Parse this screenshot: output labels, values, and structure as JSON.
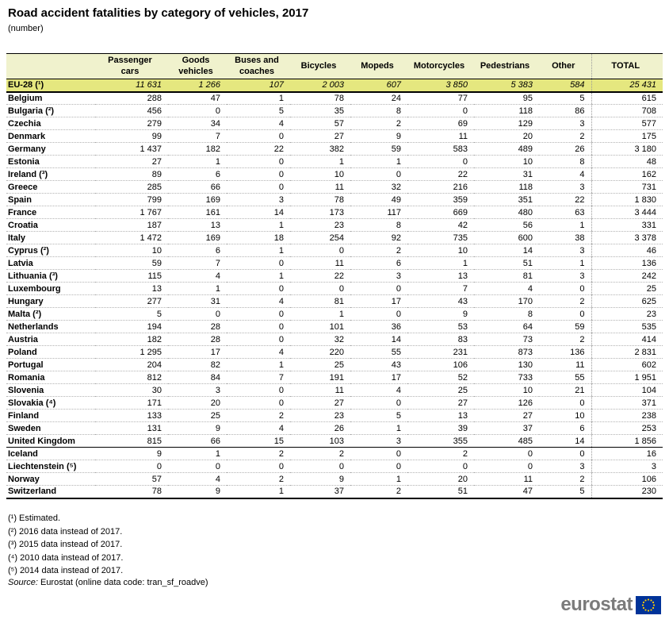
{
  "title": "Road accident fatalities by category of vehicles, 2017",
  "subtitle": "(number)",
  "colors": {
    "header_bg": "#f0f2cd",
    "eu_row_bg": "#e5e77f",
    "logo_text_gray": "#7b7b7b",
    "flag_blue": "#003399",
    "star_yellow": "#ffcc00"
  },
  "table": {
    "columns": [
      "Passenger cars",
      "Goods vehicles",
      "Buses and coaches",
      "Bicycles",
      "Mopeds",
      "Motorcycles",
      "Pedestrians",
      "Other",
      "TOTAL"
    ],
    "eu_row": {
      "name": "EU-28 (¹)",
      "values": [
        "11 631",
        "1 266",
        "107",
        "2 003",
        "607",
        "3 850",
        "5 383",
        "584",
        "25 431"
      ]
    },
    "rows": [
      {
        "name": "Belgium",
        "values": [
          "288",
          "47",
          "1",
          "78",
          "24",
          "77",
          "95",
          "5",
          "615"
        ]
      },
      {
        "name": "Bulgaria (²)",
        "values": [
          "456",
          "0",
          "5",
          "35",
          "8",
          "0",
          "118",
          "86",
          "708"
        ]
      },
      {
        "name": "Czechia",
        "values": [
          "279",
          "34",
          "4",
          "57",
          "2",
          "69",
          "129",
          "3",
          "577"
        ]
      },
      {
        "name": "Denmark",
        "values": [
          "99",
          "7",
          "0",
          "27",
          "9",
          "11",
          "20",
          "2",
          "175"
        ]
      },
      {
        "name": "Germany",
        "values": [
          "1 437",
          "182",
          "22",
          "382",
          "59",
          "583",
          "489",
          "26",
          "3 180"
        ]
      },
      {
        "name": "Estonia",
        "values": [
          "27",
          "1",
          "0",
          "1",
          "1",
          "0",
          "10",
          "8",
          "48"
        ]
      },
      {
        "name": "Ireland (³)",
        "values": [
          "89",
          "6",
          "0",
          "10",
          "0",
          "22",
          "31",
          "4",
          "162"
        ]
      },
      {
        "name": "Greece",
        "values": [
          "285",
          "66",
          "0",
          "11",
          "32",
          "216",
          "118",
          "3",
          "731"
        ]
      },
      {
        "name": "Spain",
        "values": [
          "799",
          "169",
          "3",
          "78",
          "49",
          "359",
          "351",
          "22",
          "1 830"
        ]
      },
      {
        "name": "France",
        "values": [
          "1 767",
          "161",
          "14",
          "173",
          "117",
          "669",
          "480",
          "63",
          "3 444"
        ]
      },
      {
        "name": "Croatia",
        "values": [
          "187",
          "13",
          "1",
          "23",
          "8",
          "42",
          "56",
          "1",
          "331"
        ]
      },
      {
        "name": "Italy",
        "values": [
          "1 472",
          "169",
          "18",
          "254",
          "92",
          "735",
          "600",
          "38",
          "3 378"
        ]
      },
      {
        "name": "Cyprus (²)",
        "values": [
          "10",
          "6",
          "1",
          "0",
          "2",
          "10",
          "14",
          "3",
          "46"
        ]
      },
      {
        "name": "Latvia",
        "values": [
          "59",
          "7",
          "0",
          "11",
          "6",
          "1",
          "51",
          "1",
          "136"
        ]
      },
      {
        "name": "Lithuania (³)",
        "values": [
          "115",
          "4",
          "1",
          "22",
          "3",
          "13",
          "81",
          "3",
          "242"
        ]
      },
      {
        "name": "Luxembourg",
        "values": [
          "13",
          "1",
          "0",
          "0",
          "0",
          "7",
          "4",
          "0",
          "25"
        ]
      },
      {
        "name": "Hungary",
        "values": [
          "277",
          "31",
          "4",
          "81",
          "17",
          "43",
          "170",
          "2",
          "625"
        ]
      },
      {
        "name": "Malta (²)",
        "values": [
          "5",
          "0",
          "0",
          "1",
          "0",
          "9",
          "8",
          "0",
          "23"
        ]
      },
      {
        "name": "Netherlands",
        "values": [
          "194",
          "28",
          "0",
          "101",
          "36",
          "53",
          "64",
          "59",
          "535"
        ]
      },
      {
        "name": "Austria",
        "values": [
          "182",
          "28",
          "0",
          "32",
          "14",
          "83",
          "73",
          "2",
          "414"
        ]
      },
      {
        "name": "Poland",
        "values": [
          "1 295",
          "17",
          "4",
          "220",
          "55",
          "231",
          "873",
          "136",
          "2 831"
        ]
      },
      {
        "name": "Portugal",
        "values": [
          "204",
          "82",
          "1",
          "25",
          "43",
          "106",
          "130",
          "11",
          "602"
        ]
      },
      {
        "name": "Romania",
        "values": [
          "812",
          "84",
          "7",
          "191",
          "17",
          "52",
          "733",
          "55",
          "1 951"
        ]
      },
      {
        "name": "Slovenia",
        "values": [
          "30",
          "3",
          "0",
          "11",
          "4",
          "25",
          "10",
          "21",
          "104"
        ]
      },
      {
        "name": "Slovakia (⁴)",
        "values": [
          "171",
          "20",
          "0",
          "27",
          "0",
          "27",
          "126",
          "0",
          "371"
        ]
      },
      {
        "name": "Finland",
        "values": [
          "133",
          "25",
          "2",
          "23",
          "5",
          "13",
          "27",
          "10",
          "238"
        ]
      },
      {
        "name": "Sweden",
        "values": [
          "131",
          "9",
          "4",
          "26",
          "1",
          "39",
          "37",
          "6",
          "253"
        ]
      },
      {
        "name": "United Kingdom",
        "values": [
          "815",
          "66",
          "15",
          "103",
          "3",
          "355",
          "485",
          "14",
          "1 856"
        ],
        "section_end": true
      },
      {
        "name": "Iceland",
        "values": [
          "9",
          "1",
          "2",
          "2",
          "0",
          "2",
          "0",
          "0",
          "16"
        ]
      },
      {
        "name": "Liechtenstein (⁵)",
        "values": [
          "0",
          "0",
          "0",
          "0",
          "0",
          "0",
          "0",
          "3",
          "3"
        ]
      },
      {
        "name": "Norway",
        "values": [
          "57",
          "4",
          "2",
          "9",
          "1",
          "20",
          "11",
          "2",
          "106"
        ]
      },
      {
        "name": "Switzerland",
        "values": [
          "78",
          "9",
          "1",
          "37",
          "2",
          "51",
          "47",
          "5",
          "230"
        ]
      }
    ]
  },
  "footnotes": [
    "(¹) Estimated.",
    "(²) 2016 data instead of 2017.",
    "(³) 2015 data instead of 2017.",
    "(⁴) 2010 data instead of 2017.",
    "(⁵) 2014 data instead of 2017."
  ],
  "source": {
    "label": "Source:",
    "text": " Eurostat (online data code: tran_sf_roadve)"
  },
  "logo": {
    "text": "eurostat"
  }
}
